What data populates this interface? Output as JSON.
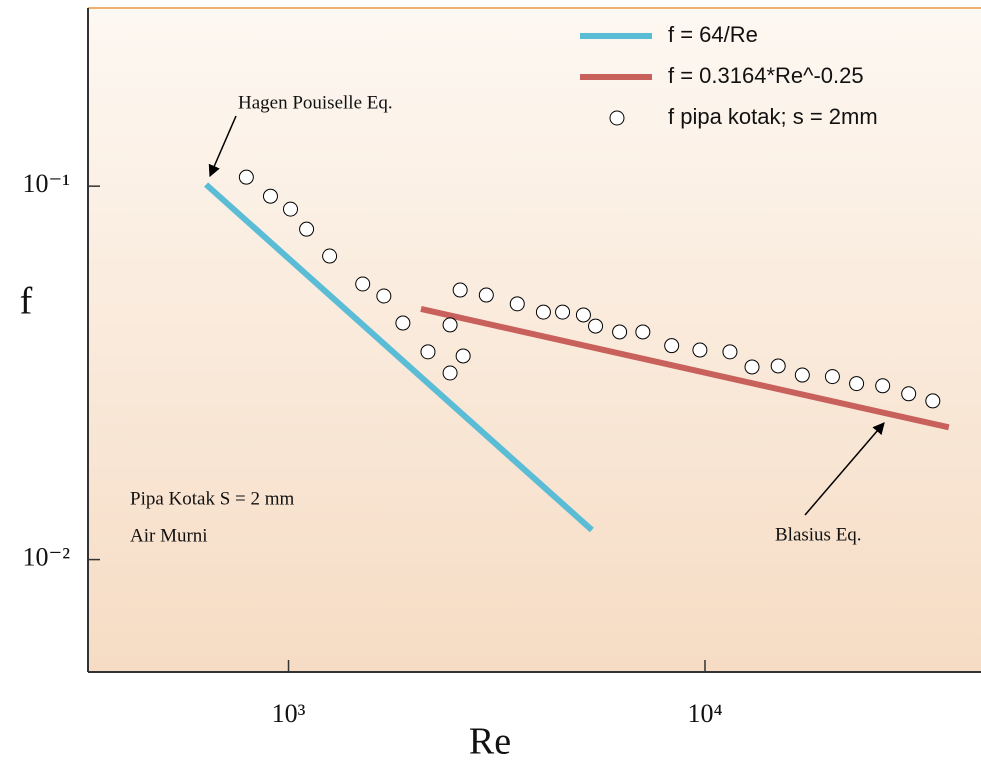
{
  "chart_data": {
    "type": "line",
    "xlabel": "Re",
    "ylabel": "f",
    "xscale": "log",
    "yscale": "log",
    "xlim": [
      330,
      46000
    ],
    "ylim": [
      0.005,
      0.3
    ],
    "xticks": [
      {
        "value": 1000,
        "label": "10³"
      },
      {
        "value": 10000,
        "label": "10⁴"
      }
    ],
    "yticks": [
      {
        "value": 0.01,
        "label": "10⁻²"
      },
      {
        "value": 0.1,
        "label": "10⁻¹"
      }
    ],
    "legend": "upper right",
    "series": [
      {
        "name": "f = 64/Re",
        "type": "line",
        "color": "#5bbcd6",
        "x": [
          634,
          5350
        ],
        "values": [
          0.101,
          0.012
        ]
      },
      {
        "name": "f = 0.3164*Re^-0.25",
        "type": "line",
        "color": "#c8605c",
        "x": [
          2080,
          38500
        ],
        "values": [
          0.0469,
          0.0226
        ]
      },
      {
        "name": "f  pipa kotak; s = 2mm",
        "type": "scatter",
        "color": "#ffffff",
        "x": [
          792,
          905,
          1011,
          1105,
          1255,
          1507,
          1694,
          1882,
          2162,
          2443,
          2443,
          2583,
          2626,
          2985,
          3542,
          4093,
          4550,
          5107,
          5460,
          6237,
          7092,
          8318,
          9723,
          11480,
          12970,
          14990,
          17130,
          20230,
          23120,
          26710,
          30840,
          35240
        ],
        "values": [
          0.1057,
          0.094,
          0.0868,
          0.0767,
          0.065,
          0.0547,
          0.0508,
          0.043,
          0.036,
          0.0425,
          0.0316,
          0.0527,
          0.0351,
          0.0511,
          0.0484,
          0.046,
          0.046,
          0.0452,
          0.0422,
          0.0407,
          0.0407,
          0.0374,
          0.0364,
          0.036,
          0.0328,
          0.033,
          0.0312,
          0.0309,
          0.0296,
          0.0292,
          0.0278,
          0.0266
        ]
      }
    ],
    "annotations": [
      "Hagen Pouiselle Eq.",
      "Blasius Eq.",
      "Pipa Kotak S = 2 mm",
      "Air Murni"
    ]
  }
}
